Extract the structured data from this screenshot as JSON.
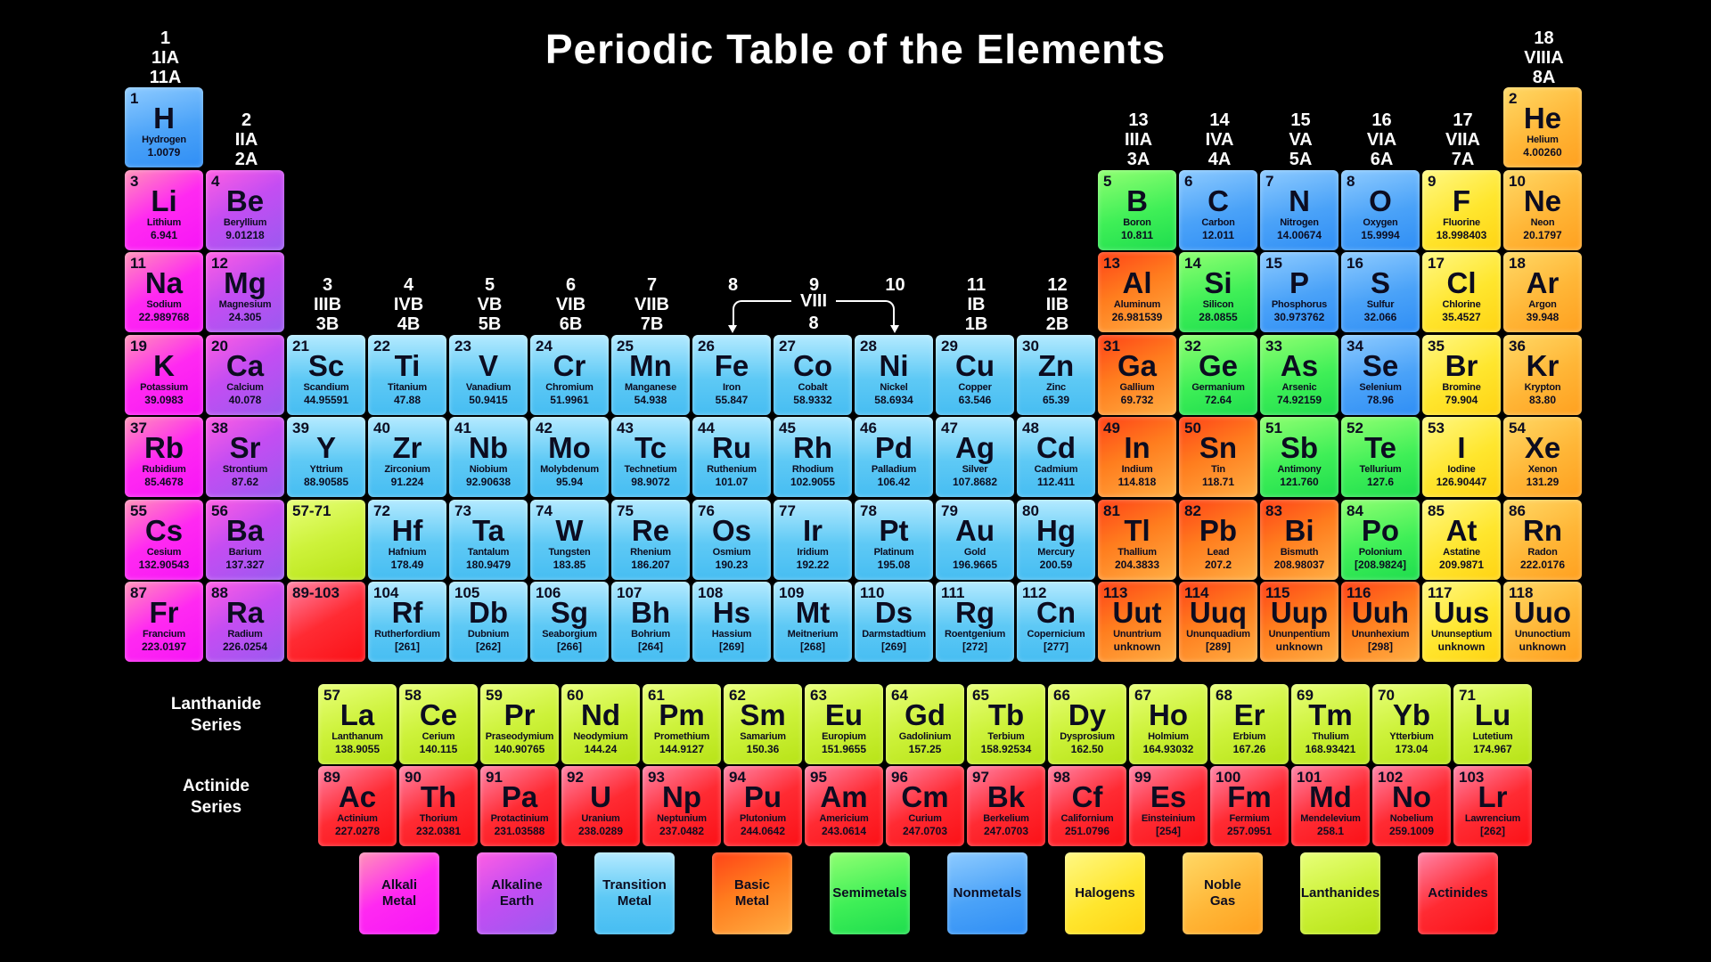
{
  "title": "Periodic Table of the Elements",
  "colors": {
    "alkali": "#ff1cff",
    "alkaline": "#a05cf2",
    "transition": "#4fc1f2",
    "basic": "#ff8c1f",
    "semi": "#2ce858",
    "nonmetal": "#3a97f7",
    "halogen": "#ffd913",
    "noble": "#ffa726",
    "lan": "#c6ef3a",
    "act": "#ff1520",
    "background": "#000000",
    "text_on_cells": "#0c0c20",
    "text_on_black": "#ffffff"
  },
  "group_headers": [
    {
      "col": 1,
      "tier": 1,
      "lines": [
        "1",
        "1IA",
        "11A"
      ]
    },
    {
      "col": 18,
      "tier": 1,
      "lines": [
        "18",
        "VIIIA",
        "8A"
      ]
    },
    {
      "col": 2,
      "tier": 2,
      "lines": [
        "2",
        "IIA",
        "2A"
      ]
    },
    {
      "col": 13,
      "tier": 2,
      "lines": [
        "13",
        "IIIA",
        "3A"
      ]
    },
    {
      "col": 14,
      "tier": 2,
      "lines": [
        "14",
        "IVA",
        "4A"
      ]
    },
    {
      "col": 15,
      "tier": 2,
      "lines": [
        "15",
        "VA",
        "5A"
      ]
    },
    {
      "col": 16,
      "tier": 2,
      "lines": [
        "16",
        "VIA",
        "6A"
      ]
    },
    {
      "col": 17,
      "tier": 2,
      "lines": [
        "17",
        "VIIA",
        "7A"
      ]
    },
    {
      "col": 3,
      "tier": 4,
      "lines": [
        "3",
        "IIIB",
        "3B"
      ]
    },
    {
      "col": 4,
      "tier": 4,
      "lines": [
        "4",
        "IVB",
        "4B"
      ]
    },
    {
      "col": 5,
      "tier": 4,
      "lines": [
        "5",
        "VB",
        "5B"
      ]
    },
    {
      "col": 6,
      "tier": 4,
      "lines": [
        "6",
        "VIB",
        "6B"
      ]
    },
    {
      "col": 7,
      "tier": 4,
      "lines": [
        "7",
        "VIIB",
        "7B"
      ]
    },
    {
      "col": 8,
      "tier": 4,
      "lines": [
        "8"
      ]
    },
    {
      "col": 9,
      "tier": 4,
      "lines": [
        "9"
      ]
    },
    {
      "col": 10,
      "tier": 4,
      "lines": [
        "10"
      ]
    },
    {
      "col": 11,
      "tier": 4,
      "lines": [
        "11",
        "IB",
        "1B"
      ]
    },
    {
      "col": 12,
      "tier": 4,
      "lines": [
        "12",
        "IIB",
        "2B"
      ]
    }
  ],
  "viii_bracket": {
    "label": "VIII",
    "sub": "8"
  },
  "series_labels": {
    "lanthanide": "Lanthanide\nSeries",
    "actinide": "Actinide\nSeries"
  },
  "elements": [
    {
      "n": "1",
      "s": "H",
      "name": "Hydrogen",
      "m": "1.0079",
      "c": "nonmetal",
      "r": 1,
      "col": 1
    },
    {
      "n": "2",
      "s": "He",
      "name": "Helium",
      "m": "4.00260",
      "c": "noble",
      "r": 1,
      "col": 18
    },
    {
      "n": "3",
      "s": "Li",
      "name": "Lithium",
      "m": "6.941",
      "c": "alkali",
      "r": 2,
      "col": 1
    },
    {
      "n": "4",
      "s": "Be",
      "name": "Beryllium",
      "m": "9.01218",
      "c": "alkaline",
      "r": 2,
      "col": 2
    },
    {
      "n": "5",
      "s": "B",
      "name": "Boron",
      "m": "10.811",
      "c": "semi",
      "r": 2,
      "col": 13
    },
    {
      "n": "6",
      "s": "C",
      "name": "Carbon",
      "m": "12.011",
      "c": "nonmetal",
      "r": 2,
      "col": 14
    },
    {
      "n": "7",
      "s": "N",
      "name": "Nitrogen",
      "m": "14.00674",
      "c": "nonmetal",
      "r": 2,
      "col": 15
    },
    {
      "n": "8",
      "s": "O",
      "name": "Oxygen",
      "m": "15.9994",
      "c": "nonmetal",
      "r": 2,
      "col": 16
    },
    {
      "n": "9",
      "s": "F",
      "name": "Fluorine",
      "m": "18.998403",
      "c": "halogen",
      "r": 2,
      "col": 17
    },
    {
      "n": "10",
      "s": "Ne",
      "name": "Neon",
      "m": "20.1797",
      "c": "noble",
      "r": 2,
      "col": 18
    },
    {
      "n": "11",
      "s": "Na",
      "name": "Sodium",
      "m": "22.989768",
      "c": "alkali",
      "r": 3,
      "col": 1
    },
    {
      "n": "12",
      "s": "Mg",
      "name": "Magnesium",
      "m": "24.305",
      "c": "alkaline",
      "r": 3,
      "col": 2
    },
    {
      "n": "13",
      "s": "Al",
      "name": "Aluminum",
      "m": "26.981539",
      "c": "basic",
      "r": 3,
      "col": 13
    },
    {
      "n": "14",
      "s": "Si",
      "name": "Silicon",
      "m": "28.0855",
      "c": "semi",
      "r": 3,
      "col": 14
    },
    {
      "n": "15",
      "s": "P",
      "name": "Phosphorus",
      "m": "30.973762",
      "c": "nonmetal",
      "r": 3,
      "col": 15
    },
    {
      "n": "16",
      "s": "S",
      "name": "Sulfur",
      "m": "32.066",
      "c": "nonmetal",
      "r": 3,
      "col": 16
    },
    {
      "n": "17",
      "s": "Cl",
      "name": "Chlorine",
      "m": "35.4527",
      "c": "halogen",
      "r": 3,
      "col": 17
    },
    {
      "n": "18",
      "s": "Ar",
      "name": "Argon",
      "m": "39.948",
      "c": "noble",
      "r": 3,
      "col": 18
    },
    {
      "n": "19",
      "s": "K",
      "name": "Potassium",
      "m": "39.0983",
      "c": "alkali",
      "r": 4,
      "col": 1
    },
    {
      "n": "20",
      "s": "Ca",
      "name": "Calcium",
      "m": "40.078",
      "c": "alkaline",
      "r": 4,
      "col": 2
    },
    {
      "n": "21",
      "s": "Sc",
      "name": "Scandium",
      "m": "44.95591",
      "c": "transition",
      "r": 4,
      "col": 3
    },
    {
      "n": "22",
      "s": "Ti",
      "name": "Titanium",
      "m": "47.88",
      "c": "transition",
      "r": 4,
      "col": 4
    },
    {
      "n": "23",
      "s": "V",
      "name": "Vanadium",
      "m": "50.9415",
      "c": "transition",
      "r": 4,
      "col": 5
    },
    {
      "n": "24",
      "s": "Cr",
      "name": "Chromium",
      "m": "51.9961",
      "c": "transition",
      "r": 4,
      "col": 6
    },
    {
      "n": "25",
      "s": "Mn",
      "name": "Manganese",
      "m": "54.938",
      "c": "transition",
      "r": 4,
      "col": 7
    },
    {
      "n": "26",
      "s": "Fe",
      "name": "Iron",
      "m": "55.847",
      "c": "transition",
      "r": 4,
      "col": 8
    },
    {
      "n": "27",
      "s": "Co",
      "name": "Cobalt",
      "m": "58.9332",
      "c": "transition",
      "r": 4,
      "col": 9
    },
    {
      "n": "28",
      "s": "Ni",
      "name": "Nickel",
      "m": "58.6934",
      "c": "transition",
      "r": 4,
      "col": 10
    },
    {
      "n": "29",
      "s": "Cu",
      "name": "Copper",
      "m": "63.546",
      "c": "transition",
      "r": 4,
      "col": 11
    },
    {
      "n": "30",
      "s": "Zn",
      "name": "Zinc",
      "m": "65.39",
      "c": "transition",
      "r": 4,
      "col": 12
    },
    {
      "n": "31",
      "s": "Ga",
      "name": "Gallium",
      "m": "69.732",
      "c": "basic",
      "r": 4,
      "col": 13
    },
    {
      "n": "32",
      "s": "Ge",
      "name": "Germanium",
      "m": "72.64",
      "c": "semi",
      "r": 4,
      "col": 14
    },
    {
      "n": "33",
      "s": "As",
      "name": "Arsenic",
      "m": "74.92159",
      "c": "semi",
      "r": 4,
      "col": 15
    },
    {
      "n": "34",
      "s": "Se",
      "name": "Selenium",
      "m": "78.96",
      "c": "nonmetal",
      "r": 4,
      "col": 16
    },
    {
      "n": "35",
      "s": "Br",
      "name": "Bromine",
      "m": "79.904",
      "c": "halogen",
      "r": 4,
      "col": 17
    },
    {
      "n": "36",
      "s": "Kr",
      "name": "Krypton",
      "m": "83.80",
      "c": "noble",
      "r": 4,
      "col": 18
    },
    {
      "n": "37",
      "s": "Rb",
      "name": "Rubidium",
      "m": "85.4678",
      "c": "alkali",
      "r": 5,
      "col": 1
    },
    {
      "n": "38",
      "s": "Sr",
      "name": "Strontium",
      "m": "87.62",
      "c": "alkaline",
      "r": 5,
      "col": 2
    },
    {
      "n": "39",
      "s": "Y",
      "name": "Yttrium",
      "m": "88.90585",
      "c": "transition",
      "r": 5,
      "col": 3
    },
    {
      "n": "40",
      "s": "Zr",
      "name": "Zirconium",
      "m": "91.224",
      "c": "transition",
      "r": 5,
      "col": 4
    },
    {
      "n": "41",
      "s": "Nb",
      "name": "Niobium",
      "m": "92.90638",
      "c": "transition",
      "r": 5,
      "col": 5
    },
    {
      "n": "42",
      "s": "Mo",
      "name": "Molybdenum",
      "m": "95.94",
      "c": "transition",
      "r": 5,
      "col": 6
    },
    {
      "n": "43",
      "s": "Tc",
      "name": "Technetium",
      "m": "98.9072",
      "c": "transition",
      "r": 5,
      "col": 7
    },
    {
      "n": "44",
      "s": "Ru",
      "name": "Ruthenium",
      "m": "101.07",
      "c": "transition",
      "r": 5,
      "col": 8
    },
    {
      "n": "45",
      "s": "Rh",
      "name": "Rhodium",
      "m": "102.9055",
      "c": "transition",
      "r": 5,
      "col": 9
    },
    {
      "n": "46",
      "s": "Pd",
      "name": "Palladium",
      "m": "106.42",
      "c": "transition",
      "r": 5,
      "col": 10
    },
    {
      "n": "47",
      "s": "Ag",
      "name": "Silver",
      "m": "107.8682",
      "c": "transition",
      "r": 5,
      "col": 11
    },
    {
      "n": "48",
      "s": "Cd",
      "name": "Cadmium",
      "m": "112.411",
      "c": "transition",
      "r": 5,
      "col": 12
    },
    {
      "n": "49",
      "s": "In",
      "name": "Indium",
      "m": "114.818",
      "c": "basic",
      "r": 5,
      "col": 13
    },
    {
      "n": "50",
      "s": "Sn",
      "name": "Tin",
      "m": "118.71",
      "c": "basic",
      "r": 5,
      "col": 14
    },
    {
      "n": "51",
      "s": "Sb",
      "name": "Antimony",
      "m": "121.760",
      "c": "semi",
      "r": 5,
      "col": 15
    },
    {
      "n": "52",
      "s": "Te",
      "name": "Tellurium",
      "m": "127.6",
      "c": "semi",
      "r": 5,
      "col": 16
    },
    {
      "n": "53",
      "s": "I",
      "name": "Iodine",
      "m": "126.90447",
      "c": "halogen",
      "r": 5,
      "col": 17
    },
    {
      "n": "54",
      "s": "Xe",
      "name": "Xenon",
      "m": "131.29",
      "c": "noble",
      "r": 5,
      "col": 18
    },
    {
      "n": "55",
      "s": "Cs",
      "name": "Cesium",
      "m": "132.90543",
      "c": "alkali",
      "r": 6,
      "col": 1
    },
    {
      "n": "56",
      "s": "Ba",
      "name": "Barium",
      "m": "137.327",
      "c": "alkaline",
      "r": 6,
      "col": 2
    },
    {
      "n": "57-71",
      "c": "lan",
      "r": 6,
      "col": 3
    },
    {
      "n": "72",
      "s": "Hf",
      "name": "Hafnium",
      "m": "178.49",
      "c": "transition",
      "r": 6,
      "col": 4
    },
    {
      "n": "73",
      "s": "Ta",
      "name": "Tantalum",
      "m": "180.9479",
      "c": "transition",
      "r": 6,
      "col": 5
    },
    {
      "n": "74",
      "s": "W",
      "name": "Tungsten",
      "m": "183.85",
      "c": "transition",
      "r": 6,
      "col": 6
    },
    {
      "n": "75",
      "s": "Re",
      "name": "Rhenium",
      "m": "186.207",
      "c": "transition",
      "r": 6,
      "col": 7
    },
    {
      "n": "76",
      "s": "Os",
      "name": "Osmium",
      "m": "190.23",
      "c": "transition",
      "r": 6,
      "col": 8
    },
    {
      "n": "77",
      "s": "Ir",
      "name": "Iridium",
      "m": "192.22",
      "c": "transition",
      "r": 6,
      "col": 9
    },
    {
      "n": "78",
      "s": "Pt",
      "name": "Platinum",
      "m": "195.08",
      "c": "transition",
      "r": 6,
      "col": 10
    },
    {
      "n": "79",
      "s": "Au",
      "name": "Gold",
      "m": "196.9665",
      "c": "transition",
      "r": 6,
      "col": 11
    },
    {
      "n": "80",
      "s": "Hg",
      "name": "Mercury",
      "m": "200.59",
      "c": "transition",
      "r": 6,
      "col": 12
    },
    {
      "n": "81",
      "s": "Tl",
      "name": "Thallium",
      "m": "204.3833",
      "c": "basic",
      "r": 6,
      "col": 13
    },
    {
      "n": "82",
      "s": "Pb",
      "name": "Lead",
      "m": "207.2",
      "c": "basic",
      "r": 6,
      "col": 14
    },
    {
      "n": "83",
      "s": "Bi",
      "name": "Bismuth",
      "m": "208.98037",
      "c": "basic",
      "r": 6,
      "col": 15
    },
    {
      "n": "84",
      "s": "Po",
      "name": "Polonium",
      "m": "[208.9824]",
      "c": "semi",
      "r": 6,
      "col": 16
    },
    {
      "n": "85",
      "s": "At",
      "name": "Astatine",
      "m": "209.9871",
      "c": "halogen",
      "r": 6,
      "col": 17
    },
    {
      "n": "86",
      "s": "Rn",
      "name": "Radon",
      "m": "222.0176",
      "c": "noble",
      "r": 6,
      "col": 18
    },
    {
      "n": "87",
      "s": "Fr",
      "name": "Francium",
      "m": "223.0197",
      "c": "alkali",
      "r": 7,
      "col": 1
    },
    {
      "n": "88",
      "s": "Ra",
      "name": "Radium",
      "m": "226.0254",
      "c": "alkaline",
      "r": 7,
      "col": 2
    },
    {
      "n": "89-103",
      "c": "act",
      "r": 7,
      "col": 3
    },
    {
      "n": "104",
      "s": "Rf",
      "name": "Rutherfordium",
      "m": "[261]",
      "c": "transition",
      "r": 7,
      "col": 4
    },
    {
      "n": "105",
      "s": "Db",
      "name": "Dubnium",
      "m": "[262]",
      "c": "transition",
      "r": 7,
      "col": 5
    },
    {
      "n": "106",
      "s": "Sg",
      "name": "Seaborgium",
      "m": "[266]",
      "c": "transition",
      "r": 7,
      "col": 6
    },
    {
      "n": "107",
      "s": "Bh",
      "name": "Bohrium",
      "m": "[264]",
      "c": "transition",
      "r": 7,
      "col": 7
    },
    {
      "n": "108",
      "s": "Hs",
      "name": "Hassium",
      "m": "[269]",
      "c": "transition",
      "r": 7,
      "col": 8
    },
    {
      "n": "109",
      "s": "Mt",
      "name": "Meitnerium",
      "m": "[268]",
      "c": "transition",
      "r": 7,
      "col": 9
    },
    {
      "n": "110",
      "s": "Ds",
      "name": "Darmstadtium",
      "m": "[269]",
      "c": "transition",
      "r": 7,
      "col": 10
    },
    {
      "n": "111",
      "s": "Rg",
      "name": "Roentgenium",
      "m": "[272]",
      "c": "transition",
      "r": 7,
      "col": 11
    },
    {
      "n": "112",
      "s": "Cn",
      "name": "Copernicium",
      "m": "[277]",
      "c": "transition",
      "r": 7,
      "col": 12
    },
    {
      "n": "113",
      "s": "Uut",
      "name": "Ununtrium",
      "m": "unknown",
      "c": "basic",
      "r": 7,
      "col": 13
    },
    {
      "n": "114",
      "s": "Uuq",
      "name": "Ununquadium",
      "m": "[289]",
      "c": "basic",
      "r": 7,
      "col": 14
    },
    {
      "n": "115",
      "s": "Uup",
      "name": "Ununpentium",
      "m": "unknown",
      "c": "basic",
      "r": 7,
      "col": 15
    },
    {
      "n": "116",
      "s": "Uuh",
      "name": "Ununhexium",
      "m": "[298]",
      "c": "basic",
      "r": 7,
      "col": 16
    },
    {
      "n": "117",
      "s": "Uus",
      "name": "Ununseptium",
      "m": "unknown",
      "c": "halogen",
      "r": 7,
      "col": 17
    },
    {
      "n": "118",
      "s": "Uuo",
      "name": "Ununoctium",
      "m": "unknown",
      "c": "noble",
      "r": 7,
      "col": 18
    }
  ],
  "lanthanide_series": [
    {
      "n": "57",
      "s": "La",
      "name": "Lanthanum",
      "m": "138.9055",
      "c": "lan"
    },
    {
      "n": "58",
      "s": "Ce",
      "name": "Cerium",
      "m": "140.115",
      "c": "lan"
    },
    {
      "n": "59",
      "s": "Pr",
      "name": "Praseodymium",
      "m": "140.90765",
      "c": "lan"
    },
    {
      "n": "60",
      "s": "Nd",
      "name": "Neodymium",
      "m": "144.24",
      "c": "lan"
    },
    {
      "n": "61",
      "s": "Pm",
      "name": "Promethium",
      "m": "144.9127",
      "c": "lan"
    },
    {
      "n": "62",
      "s": "Sm",
      "name": "Samarium",
      "m": "150.36",
      "c": "lan"
    },
    {
      "n": "63",
      "s": "Eu",
      "name": "Europium",
      "m": "151.9655",
      "c": "lan"
    },
    {
      "n": "64",
      "s": "Gd",
      "name": "Gadolinium",
      "m": "157.25",
      "c": "lan"
    },
    {
      "n": "65",
      "s": "Tb",
      "name": "Terbium",
      "m": "158.92534",
      "c": "lan"
    },
    {
      "n": "66",
      "s": "Dy",
      "name": "Dysprosium",
      "m": "162.50",
      "c": "lan"
    },
    {
      "n": "67",
      "s": "Ho",
      "name": "Holmium",
      "m": "164.93032",
      "c": "lan"
    },
    {
      "n": "68",
      "s": "Er",
      "name": "Erbium",
      "m": "167.26",
      "c": "lan"
    },
    {
      "n": "69",
      "s": "Tm",
      "name": "Thulium",
      "m": "168.93421",
      "c": "lan"
    },
    {
      "n": "70",
      "s": "Yb",
      "name": "Ytterbium",
      "m": "173.04",
      "c": "lan"
    },
    {
      "n": "71",
      "s": "Lu",
      "name": "Lutetium",
      "m": "174.967",
      "c": "lan"
    }
  ],
  "actinide_series": [
    {
      "n": "89",
      "s": "Ac",
      "name": "Actinium",
      "m": "227.0278",
      "c": "act"
    },
    {
      "n": "90",
      "s": "Th",
      "name": "Thorium",
      "m": "232.0381",
      "c": "act"
    },
    {
      "n": "91",
      "s": "Pa",
      "name": "Protactinium",
      "m": "231.03588",
      "c": "act"
    },
    {
      "n": "92",
      "s": "U",
      "name": "Uranium",
      "m": "238.0289",
      "c": "act"
    },
    {
      "n": "93",
      "s": "Np",
      "name": "Neptunium",
      "m": "237.0482",
      "c": "act"
    },
    {
      "n": "94",
      "s": "Pu",
      "name": "Plutonium",
      "m": "244.0642",
      "c": "act"
    },
    {
      "n": "95",
      "s": "Am",
      "name": "Americium",
      "m": "243.0614",
      "c": "act"
    },
    {
      "n": "96",
      "s": "Cm",
      "name": "Curium",
      "m": "247.0703",
      "c": "act"
    },
    {
      "n": "97",
      "s": "Bk",
      "name": "Berkelium",
      "m": "247.0703",
      "c": "act"
    },
    {
      "n": "98",
      "s": "Cf",
      "name": "Californium",
      "m": "251.0796",
      "c": "act"
    },
    {
      "n": "99",
      "s": "Es",
      "name": "Einsteinium",
      "m": "[254]",
      "c": "act"
    },
    {
      "n": "100",
      "s": "Fm",
      "name": "Fermium",
      "m": "257.0951",
      "c": "act"
    },
    {
      "n": "101",
      "s": "Md",
      "name": "Mendelevium",
      "m": "258.1",
      "c": "act"
    },
    {
      "n": "102",
      "s": "No",
      "name": "Nobelium",
      "m": "259.1009",
      "c": "act"
    },
    {
      "n": "103",
      "s": "Lr",
      "name": "Lawrencium",
      "m": "[262]",
      "c": "act"
    }
  ],
  "legend": [
    {
      "label": "Alkali\nMetal",
      "cat": "alkali"
    },
    {
      "label": "Alkaline\nEarth",
      "cat": "alkaline"
    },
    {
      "label": "Transition\nMetal",
      "cat": "transition"
    },
    {
      "label": "Basic\nMetal",
      "cat": "basic"
    },
    {
      "label": "Semimetals",
      "cat": "semi"
    },
    {
      "label": "Nonmetals",
      "cat": "nonmetal"
    },
    {
      "label": "Halogens",
      "cat": "halogen"
    },
    {
      "label": "Noble\nGas",
      "cat": "noble"
    },
    {
      "label": "Lanthanides",
      "cat": "lan"
    },
    {
      "label": "Actinides",
      "cat": "act"
    }
  ]
}
